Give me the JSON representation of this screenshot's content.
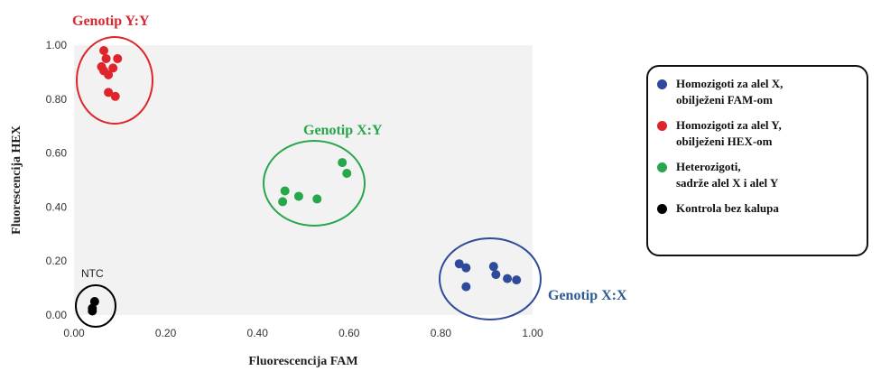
{
  "chart_data": {
    "type": "scatter",
    "xlabel": "Fluorescencija FAM",
    "ylabel": "Fluorescencija HEX",
    "xlim": [
      0,
      1
    ],
    "ylim": [
      0,
      1
    ],
    "x_ticks": [
      "0.00",
      "0.20",
      "0.40",
      "0.60",
      "0.80",
      "1.00"
    ],
    "y_ticks": [
      "0.00",
      "0.20",
      "0.40",
      "0.60",
      "0.80",
      "1.00"
    ],
    "grid": false,
    "plot_background": "#f2f2f2",
    "series": [
      {
        "name": "Homozigoti za alel X, obilježeni FAM-om",
        "color": "#2e4a9a",
        "points": [
          [
            0.84,
            0.19
          ],
          [
            0.855,
            0.175
          ],
          [
            0.855,
            0.105
          ],
          [
            0.915,
            0.18
          ],
          [
            0.92,
            0.15
          ],
          [
            0.945,
            0.135
          ],
          [
            0.965,
            0.13
          ]
        ]
      },
      {
        "name": "Homozigoti za alel Y, obilježeni HEX-om",
        "color": "#e0242b",
        "points": [
          [
            0.065,
            0.98
          ],
          [
            0.07,
            0.95
          ],
          [
            0.095,
            0.95
          ],
          [
            0.06,
            0.92
          ],
          [
            0.065,
            0.905
          ],
          [
            0.085,
            0.915
          ],
          [
            0.075,
            0.89
          ],
          [
            0.075,
            0.825
          ],
          [
            0.09,
            0.81
          ]
        ]
      },
      {
        "name": "Heterozigoti, sadrže alel X i alel Y",
        "color": "#27a64b",
        "points": [
          [
            0.455,
            0.42
          ],
          [
            0.46,
            0.46
          ],
          [
            0.49,
            0.44
          ],
          [
            0.53,
            0.43
          ],
          [
            0.585,
            0.565
          ],
          [
            0.595,
            0.525
          ]
        ]
      },
      {
        "name": "Kontrola bez kalupa",
        "color": "#000000",
        "points": [
          [
            0.045,
            0.05
          ],
          [
            0.04,
            0.025
          ],
          [
            0.04,
            0.015
          ]
        ]
      }
    ],
    "annotations": [
      {
        "text": "Genotip Y:Y",
        "color": "#d42a32"
      },
      {
        "text": "Genotip X:Y",
        "color": "#27a64b"
      },
      {
        "text": "Genotip X:X",
        "color": "#2e5a8e"
      },
      {
        "text": "NTC",
        "color": "#222222"
      }
    ]
  },
  "legend": {
    "items": [
      {
        "lines": [
          "Homozigoti za alel X,",
          "obilježeni FAM-om"
        ],
        "color": "#2e4a9a"
      },
      {
        "lines": [
          "Homozigoti za alel Y,",
          "obilježeni HEX-om"
        ],
        "color": "#e0242b"
      },
      {
        "lines": [
          "Heterozigoti,",
          "sadrže alel X i alel Y"
        ],
        "color": "#27a64b"
      },
      {
        "lines": [
          "Kontrola bez kalupa"
        ],
        "color": "#000000"
      }
    ]
  }
}
